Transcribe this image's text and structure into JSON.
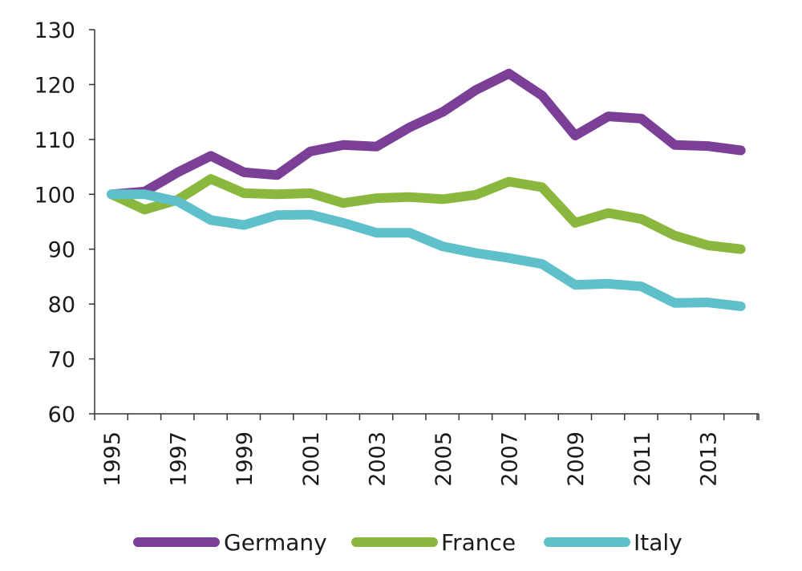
{
  "chart_data": {
    "type": "line",
    "title": "",
    "xlabel": "",
    "ylabel": "",
    "x": [
      1995,
      1996,
      1997,
      1998,
      1999,
      2000,
      2001,
      2002,
      2003,
      2004,
      2005,
      2006,
      2007,
      2008,
      2009,
      2010,
      2011,
      2012,
      2013,
      2014
    ],
    "x_tick_labels": [
      "1995",
      "1997",
      "1999",
      "2001",
      "2003",
      "2005",
      "2007",
      "2009",
      "2011",
      "2013"
    ],
    "y_tick_labels": [
      "60",
      "70",
      "80",
      "90",
      "100",
      "110",
      "120",
      "130"
    ],
    "ylim": [
      60,
      130
    ],
    "grid": false,
    "legend_position": "bottom",
    "series": [
      {
        "name": "Germany",
        "color": "#7b3f98",
        "values": [
          100,
          100.5,
          104,
          107,
          104,
          103.5,
          107.8,
          109,
          108.7,
          112.2,
          115,
          119,
          122,
          118,
          110.7,
          114.2,
          113.8,
          109,
          108.8,
          108
        ]
      },
      {
        "name": "France",
        "color": "#8ab83e",
        "values": [
          100,
          97.2,
          99,
          102.8,
          100.2,
          100,
          100.2,
          98.4,
          99.3,
          99.5,
          99.1,
          99.9,
          102.3,
          101.3,
          94.8,
          96.6,
          95.5,
          92.5,
          90.7,
          90
        ]
      },
      {
        "name": "Italy",
        "color": "#5fc0cc",
        "values": [
          100,
          100,
          98.7,
          95.3,
          94.4,
          96.2,
          96.3,
          94.8,
          93,
          93,
          90.5,
          89.3,
          88.4,
          87.3,
          83.5,
          83.7,
          83.2,
          80.2,
          80.3,
          79.6
        ]
      }
    ]
  }
}
